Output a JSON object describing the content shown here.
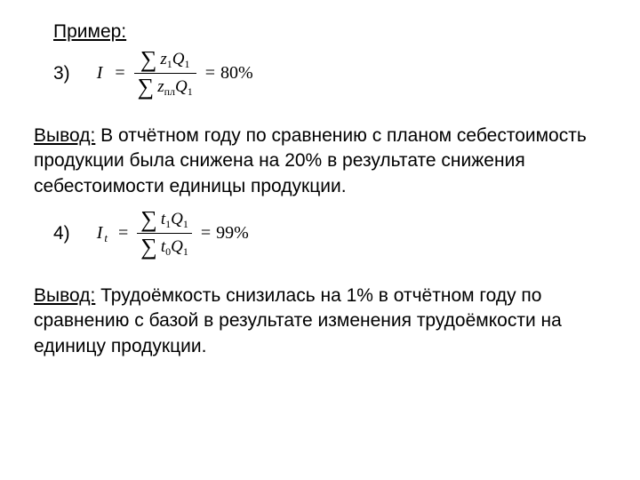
{
  "exampleLabel": "Пример:",
  "item3": {
    "number": "3)",
    "lhs": "I",
    "subscript": " ",
    "numerator": {
      "sigma": "∑",
      "var1": "z",
      "idx1": "1",
      "var2": "Q",
      "idx2": "1"
    },
    "denominator": {
      "sigma": "∑",
      "var1": "z",
      "idx1": "пл",
      "var2": "Q",
      "idx2": "1"
    },
    "result": "80%"
  },
  "conclusion1": {
    "label": "Вывод:",
    "text": " В отчётном году по сравнению с планом себестоимость продукции была снижена на 20% в результате снижения себестоимости единицы продукции."
  },
  "item4": {
    "number": "4)",
    "lhs": "I",
    "subscript": "t",
    "numerator": {
      "sigma": "∑",
      "var1": "t",
      "idx1": "1",
      "var2": "Q",
      "idx2": "1"
    },
    "denominator": {
      "sigma": "∑",
      "var1": "t",
      "idx1": "0",
      "var2": "Q",
      "idx2": "1"
    },
    "result": "99%"
  },
  "conclusion2": {
    "label": "Вывод:",
    "text": " Трудоёмкость снизилась на 1% в отчётном году по сравнению с базой в результате изменения трудоёмкости на единицу продукции."
  },
  "equals": "="
}
